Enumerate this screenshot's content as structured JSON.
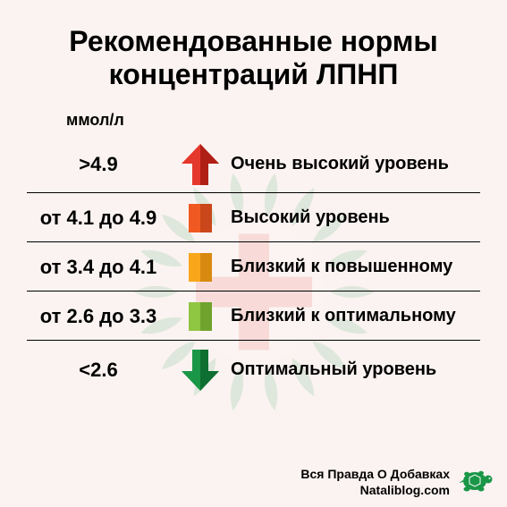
{
  "background_color": "#fbf3f1",
  "title": {
    "text": "Рекомендованные нормы концентраций ЛПНП",
    "fontsize": 32,
    "color": "#000000"
  },
  "unit_label": {
    "text": "ммол/л",
    "fontsize": 18
  },
  "range_fontsize": 22,
  "label_fontsize": 20,
  "divider_color": "#000000",
  "rows": [
    {
      "range": ">4.9",
      "label": "Очень высокий уровень",
      "icon": "arrow-up",
      "color": "#e5382c",
      "color2": "#b01f16"
    },
    {
      "range": "от 4.1 до 4.9",
      "label": "Высокий уровень",
      "icon": "square",
      "color": "#f05a22",
      "color2": "#c9471a"
    },
    {
      "range": "от 3.4 до 4.1",
      "label": "Близкий к повышенному",
      "icon": "square",
      "color": "#f9a61b",
      "color2": "#d88a10"
    },
    {
      "range": "от 2.6 до 3.3",
      "label": "Близкий к оптимальному",
      "icon": "square",
      "color": "#8fc642",
      "color2": "#6fa32d"
    },
    {
      "range": "<2.6",
      "label": "Оптимальный уровень",
      "icon": "arrow-down",
      "color": "#1a9647",
      "color2": "#0f6e31"
    }
  ],
  "footer": {
    "line1": "Вся Правда О Добавках",
    "line2": "Nataliblog.com",
    "fontsize": 14,
    "turtle_color": "#1a9647"
  },
  "watermark": {
    "cross_color": "#e5382c",
    "leaf_color": "#1a9647",
    "size": 300
  }
}
